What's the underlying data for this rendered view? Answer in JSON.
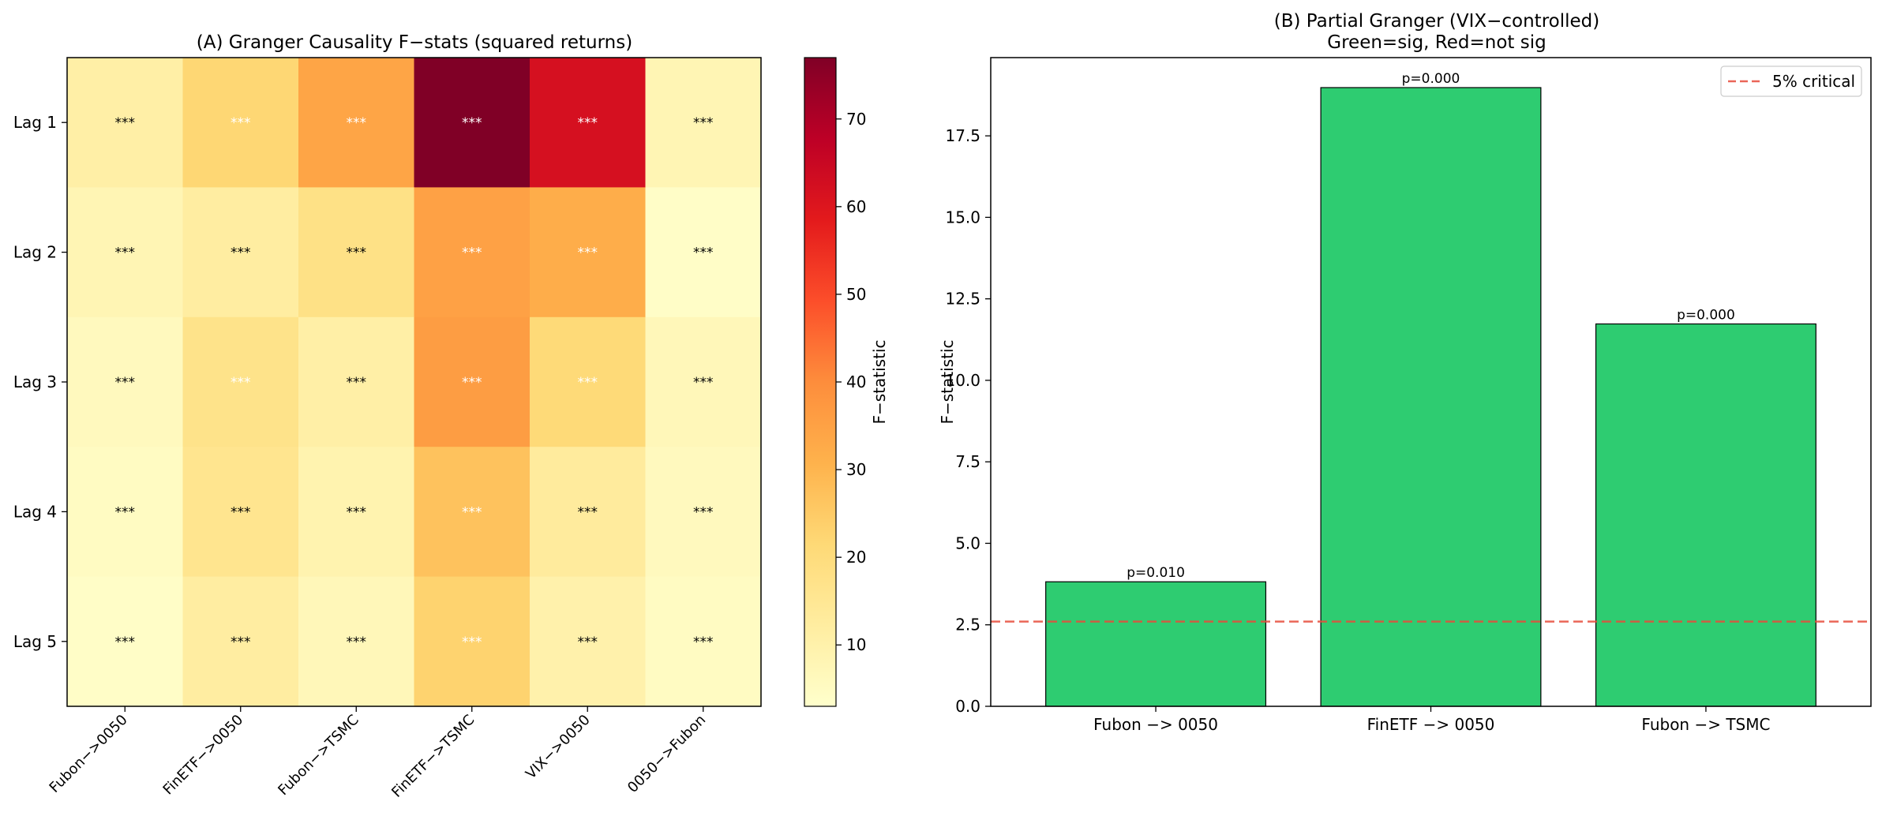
{
  "chart_data": [
    {
      "type": "heatmap",
      "title": "(A) Granger Causality F−stats (squared returns)",
      "x_categories": [
        "Fubon−>0050",
        "FinETF−>0050",
        "Fubon−>TSMC",
        "FinETF−>TSMC",
        "VIX−>0050",
        "0050−>Fubon"
      ],
      "y_categories": [
        "Lag 1",
        "Lag 2",
        "Lag 3",
        "Lag 4",
        "Lag 5"
      ],
      "values": [
        [
          11,
          22,
          34,
          77,
          62,
          8
        ],
        [
          8,
          12,
          18,
          35,
          32,
          4
        ],
        [
          6,
          17,
          11,
          36,
          21,
          7
        ],
        [
          5,
          16,
          9,
          27,
          13,
          6
        ],
        [
          4,
          12,
          7,
          23,
          10,
          5
        ]
      ],
      "annotations": [
        [
          "***",
          "***",
          "***",
          "***",
          "***",
          "***"
        ],
        [
          "***",
          "***",
          "***",
          "***",
          "***",
          "***"
        ],
        [
          "***",
          "***",
          "***",
          "***",
          "***",
          "***"
        ],
        [
          "***",
          "***",
          "***",
          "***",
          "***",
          "***"
        ],
        [
          "***",
          "***",
          "***",
          "***",
          "***",
          "***"
        ]
      ],
      "annotation_color": [
        [
          "#000000",
          "#ffffff",
          "#ffffff",
          "#ffffff",
          "#ffffff",
          "#000000"
        ],
        [
          "#000000",
          "#000000",
          "#000000",
          "#ffffff",
          "#ffffff",
          "#000000"
        ],
        [
          "#000000",
          "#ffffff",
          "#000000",
          "#ffffff",
          "#ffffff",
          "#000000"
        ],
        [
          "#000000",
          "#000000",
          "#000000",
          "#ffffff",
          "#000000",
          "#000000"
        ],
        [
          "#000000",
          "#000000",
          "#000000",
          "#ffffff",
          "#000000",
          "#000000"
        ]
      ],
      "colormap": "YlOrRd",
      "vmin": 3,
      "vmax": 77,
      "colorbar": {
        "label": "F−statistic",
        "ticks": [
          10,
          20,
          30,
          40,
          50,
          60,
          70
        ]
      }
    },
    {
      "type": "bar",
      "title": "(B) Partial Granger (VIX−controlled)",
      "subtitle": "Green=sig, Red=not sig",
      "categories": [
        "Fubon −> 0050",
        "FinETF −> 0050",
        "Fubon −> TSMC"
      ],
      "values": [
        3.82,
        18.98,
        11.73
      ],
      "bar_labels": [
        "p=0.010",
        "p=0.000",
        "p=0.000"
      ],
      "bar_color": "#2ecc71",
      "ylabel": "F−statistic",
      "ylim": [
        0,
        19.9
      ],
      "yticks": [
        0.0,
        2.5,
        5.0,
        7.5,
        10.0,
        12.5,
        15.0,
        17.5
      ],
      "ytick_labels": [
        "0.0",
        "2.5",
        "5.0",
        "7.5",
        "10.0",
        "12.5",
        "15.0",
        "17.5"
      ],
      "reference_line": {
        "value": 2.6,
        "label": "5% critical",
        "color": "#e74c3c",
        "style": "dashed"
      },
      "legend": {
        "position": "top-right"
      }
    }
  ]
}
